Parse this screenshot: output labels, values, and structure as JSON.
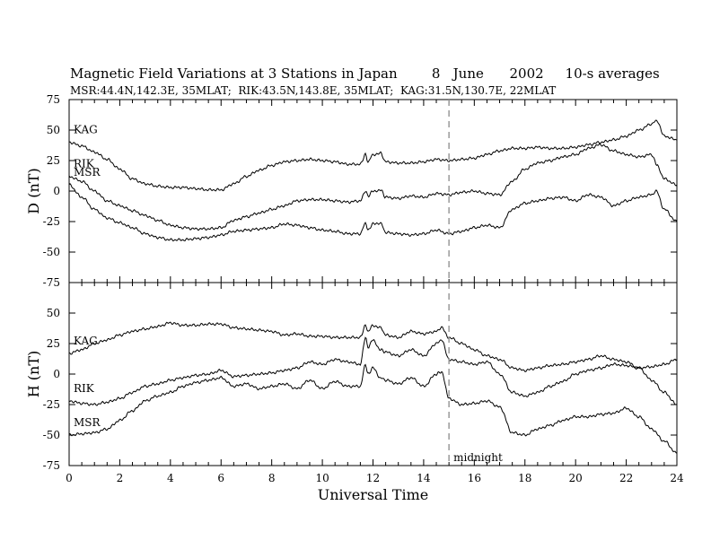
{
  "title": {
    "main": "Magnetic Field Variations at 3 Stations in Japan",
    "day": "8",
    "month": "June",
    "year": "2002",
    "averaging": "10-s averages"
  },
  "subtitle": "MSR:44.4N,142.3E, 35MLAT;  RIK:43.5N,143.8E, 35MLAT;  KAG:31.5N,130.7E, 22MLAT",
  "chart_data": [
    {
      "type": "line",
      "panel": "top",
      "ylabel": "D (nT)",
      "ylim": [
        -75,
        75
      ],
      "yticks": [
        "75",
        "50",
        "25",
        "0",
        "-25",
        "-50",
        "-75"
      ],
      "xlim": [
        0,
        24
      ],
      "annotation": {
        "label": "midnight",
        "x": 15
      },
      "series": [
        {
          "name": "KAG",
          "x": [
            0,
            0.5,
            1,
            1.5,
            2,
            2.5,
            3,
            3.5,
            4,
            4.5,
            5,
            5.5,
            6,
            6.5,
            7,
            7.5,
            8,
            8.5,
            9,
            9.5,
            10,
            10.5,
            11,
            11.5,
            11.7,
            11.8,
            12,
            12.3,
            12.5,
            13,
            13.5,
            14,
            14.5,
            15,
            15.5,
            16,
            16.5,
            17,
            17.5,
            18,
            18.5,
            19,
            19.5,
            20,
            20.5,
            21,
            21.5,
            22,
            22.5,
            23,
            23.2,
            23.5,
            24
          ],
          "values": [
            40,
            37,
            32,
            26,
            18,
            10,
            6,
            4,
            3,
            3,
            2,
            1,
            1,
            6,
            12,
            17,
            21,
            24,
            25,
            26,
            25,
            24,
            22,
            22,
            30,
            24,
            30,
            31,
            24,
            23,
            23,
            24,
            26,
            25,
            26,
            27,
            30,
            33,
            35,
            35,
            36,
            35,
            35,
            36,
            38,
            40,
            42,
            45,
            50,
            55,
            58,
            45,
            42
          ]
        },
        {
          "name": "RIK",
          "x": [
            0,
            0.5,
            1,
            1.5,
            2,
            2.5,
            3,
            3.5,
            4,
            4.5,
            5,
            5.5,
            6,
            6.5,
            7,
            7.5,
            8,
            8.5,
            9,
            9.5,
            10,
            10.5,
            11,
            11.5,
            11.7,
            11.8,
            12,
            12.3,
            12.5,
            13,
            13.5,
            14,
            14.5,
            15,
            15.5,
            16,
            16.5,
            17,
            17.5,
            18,
            18.5,
            19,
            19.5,
            20,
            20.5,
            21,
            21.5,
            22,
            22.5,
            23,
            23.2,
            23.5,
            24
          ],
          "values": [
            12,
            8,
            0,
            -8,
            -12,
            -16,
            -20,
            -24,
            -28,
            -30,
            -31,
            -31,
            -30,
            -24,
            -21,
            -18,
            -15,
            -12,
            -8,
            -7,
            -7,
            -8,
            -9,
            -8,
            0,
            -4,
            0,
            1,
            -5,
            -6,
            -4,
            -5,
            -2,
            -3,
            -1,
            0,
            -2,
            -3,
            8,
            18,
            23,
            25,
            28,
            30,
            35,
            38,
            33,
            30,
            28,
            30,
            22,
            10,
            5
          ]
        },
        {
          "name": "MSR",
          "x": [
            0,
            0.5,
            1,
            1.5,
            2,
            2.5,
            3,
            3.5,
            4,
            4.5,
            5,
            5.5,
            6,
            6.5,
            7,
            7.5,
            8,
            8.5,
            9,
            9.5,
            10,
            10.5,
            11,
            11.5,
            11.7,
            11.8,
            12,
            12.3,
            12.5,
            13,
            13.5,
            14,
            14.5,
            15,
            15.5,
            16,
            16.5,
            17,
            17.5,
            18,
            18.5,
            19,
            19.5,
            20,
            20.5,
            21,
            21.5,
            22,
            22.5,
            23,
            23.2,
            23.5,
            24
          ],
          "values": [
            5,
            -5,
            -15,
            -22,
            -26,
            -30,
            -35,
            -38,
            -40,
            -40,
            -39,
            -38,
            -36,
            -33,
            -32,
            -31,
            -30,
            -27,
            -28,
            -30,
            -32,
            -33,
            -35,
            -35,
            -26,
            -32,
            -27,
            -26,
            -34,
            -35,
            -36,
            -35,
            -32,
            -35,
            -33,
            -30,
            -28,
            -30,
            -15,
            -10,
            -8,
            -6,
            -5,
            -8,
            -3,
            -5,
            -12,
            -8,
            -5,
            -3,
            0,
            -15,
            -25
          ]
        }
      ]
    },
    {
      "type": "line",
      "panel": "bottom",
      "ylabel": "H (nT)",
      "xlabel": "Universal Time",
      "ylim": [
        -75,
        75
      ],
      "yticks": [
        "75",
        "50",
        "25",
        "0",
        "-25",
        "-50",
        "-75"
      ],
      "xlim": [
        0,
        24
      ],
      "xticks": [
        "0",
        "2",
        "4",
        "6",
        "8",
        "10",
        "12",
        "14",
        "16",
        "18",
        "20",
        "22",
        "24"
      ],
      "series": [
        {
          "name": "KAG",
          "x": [
            0,
            0.5,
            1,
            1.5,
            2,
            2.5,
            3,
            3.5,
            4,
            4.5,
            5,
            5.5,
            6,
            6.5,
            7,
            7.5,
            8,
            8.5,
            9,
            9.5,
            10,
            10.5,
            11,
            11.5,
            11.7,
            11.8,
            12,
            12.3,
            12.5,
            13,
            13.5,
            14,
            14.5,
            14.7,
            15,
            15.5,
            16,
            16.5,
            17,
            17.5,
            18,
            18.5,
            19,
            19.5,
            20,
            20.5,
            21,
            21.5,
            22,
            22.5,
            23,
            23.5,
            24
          ],
          "values": [
            17,
            20,
            25,
            28,
            32,
            35,
            37,
            39,
            42,
            40,
            40,
            41,
            41,
            38,
            37,
            36,
            35,
            32,
            33,
            31,
            31,
            30,
            30,
            30,
            40,
            35,
            40,
            38,
            32,
            30,
            35,
            33,
            35,
            38,
            30,
            25,
            20,
            15,
            12,
            5,
            3,
            5,
            7,
            8,
            10,
            12,
            15,
            12,
            10,
            5,
            6,
            8,
            12
          ]
        },
        {
          "name": "RIK",
          "x": [
            0,
            0.5,
            1,
            1.5,
            2,
            2.5,
            3,
            3.5,
            4,
            4.5,
            5,
            5.5,
            6,
            6.5,
            7,
            7.5,
            8,
            8.5,
            9,
            9.5,
            10,
            10.5,
            11,
            11.5,
            11.7,
            11.8,
            12,
            12.3,
            12.5,
            13,
            13.5,
            14,
            14.5,
            14.7,
            15,
            15.5,
            16,
            16.5,
            17,
            17.5,
            18,
            18.5,
            19,
            19.5,
            20,
            20.5,
            21,
            21.5,
            22,
            22.5,
            23,
            23.5,
            24
          ],
          "values": [
            -22,
            -24,
            -25,
            -23,
            -20,
            -15,
            -10,
            -8,
            -5,
            -3,
            -1,
            0,
            3,
            -2,
            -1,
            0,
            1,
            3,
            5,
            10,
            8,
            12,
            10,
            8,
            30,
            22,
            28,
            20,
            18,
            15,
            20,
            15,
            25,
            28,
            12,
            10,
            8,
            10,
            0,
            -15,
            -18,
            -15,
            -10,
            -6,
            0,
            3,
            5,
            8,
            7,
            5,
            -5,
            -15,
            -25
          ]
        },
        {
          "name": "MSR",
          "x": [
            0,
            0.5,
            1,
            1.5,
            2,
            2.5,
            3,
            3.5,
            4,
            4.5,
            5,
            5.5,
            6,
            6.5,
            7,
            7.5,
            8,
            8.5,
            9,
            9.5,
            10,
            10.5,
            11,
            11.5,
            11.7,
            11.8,
            12,
            12.3,
            12.5,
            13,
            13.5,
            14,
            14.5,
            14.7,
            15,
            15.5,
            16,
            16.5,
            17,
            17.5,
            18,
            18.5,
            19,
            19.5,
            20,
            20.5,
            21,
            21.5,
            22,
            22.5,
            23,
            23.5,
            24
          ],
          "values": [
            -50,
            -49,
            -48,
            -45,
            -38,
            -30,
            -22,
            -18,
            -15,
            -10,
            -7,
            -5,
            -3,
            -10,
            -8,
            -12,
            -10,
            -8,
            -12,
            -5,
            -12,
            -6,
            -10,
            -10,
            8,
            0,
            5,
            -3,
            -5,
            -8,
            -3,
            -10,
            0,
            2,
            -20,
            -25,
            -24,
            -22,
            -27,
            -48,
            -50,
            -45,
            -42,
            -38,
            -35,
            -35,
            -33,
            -32,
            -28,
            -35,
            -45,
            -55,
            -65
          ]
        }
      ]
    }
  ]
}
